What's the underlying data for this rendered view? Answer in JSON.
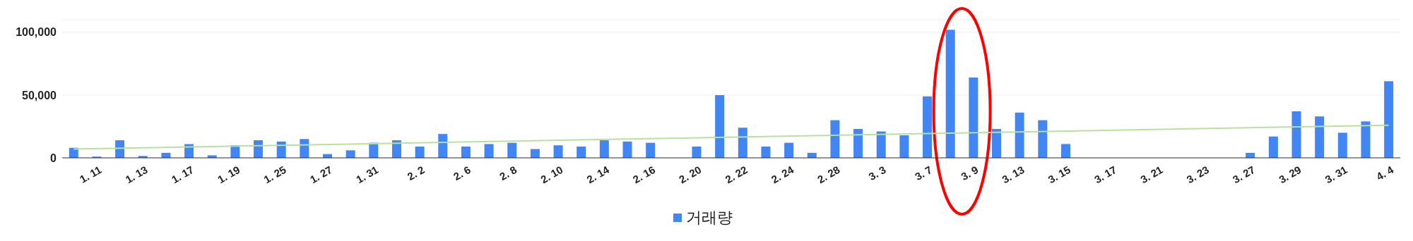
{
  "chart_data": {
    "type": "bar",
    "categories": [
      null,
      "1. 11",
      null,
      "1. 13",
      null,
      "1. 17",
      null,
      "1. 19",
      null,
      "1. 25",
      null,
      "1. 27",
      null,
      "1. 31",
      null,
      "2. 2",
      null,
      "2. 6",
      null,
      "2. 8",
      null,
      "2. 10",
      null,
      "2. 14",
      null,
      "2. 16",
      null,
      "2. 20",
      null,
      "2. 22",
      null,
      "2. 24",
      null,
      "2. 28",
      null,
      "3. 3",
      null,
      "3. 7",
      null,
      "3. 9",
      null,
      "3. 13",
      null,
      "3. 15",
      null,
      "3. 17",
      null,
      "3. 21",
      null,
      "3. 23",
      null,
      "3. 27",
      null,
      "3. 29",
      null,
      "3. 31",
      null,
      "4. 4"
    ],
    "series": [
      {
        "name": "거래량",
        "color": "#4285f4",
        "values": [
          8000,
          1000,
          14000,
          1500,
          4000,
          11000,
          2000,
          10000,
          14000,
          13000,
          15000,
          3000,
          6000,
          12000,
          14000,
          9000,
          19000,
          9000,
          11000,
          12000,
          7000,
          10000,
          9000,
          14000,
          13000,
          12000,
          0,
          9000,
          50000,
          24000,
          9000,
          12000,
          4000,
          30000,
          23000,
          21000,
          18000,
          49000,
          102000,
          64000,
          23000,
          36000,
          30000,
          11000,
          0,
          0,
          0,
          0,
          0,
          0,
          0,
          4000,
          17000,
          37000,
          33000,
          20000,
          29000,
          61000
        ]
      },
      {
        "type": "line",
        "color": "#b7e1a1",
        "values": [
          7000,
          null,
          null,
          null,
          null,
          null,
          null,
          null,
          null,
          null,
          null,
          null,
          null,
          null,
          null,
          null,
          null,
          null,
          null,
          null,
          null,
          null,
          null,
          null,
          null,
          null,
          null,
          null,
          null,
          null,
          null,
          null,
          null,
          null,
          null,
          null,
          null,
          null,
          null,
          null,
          null,
          null,
          null,
          null,
          null,
          null,
          null,
          null,
          null,
          null,
          null,
          null,
          null,
          null,
          null,
          null,
          null,
          26000
        ]
      }
    ],
    "ylim": [
      0,
      110000
    ],
    "yticks": [
      0,
      {
        "value": 50000,
        "label": "50,000"
      },
      {
        "value": 100000,
        "label": "100,000"
      }
    ],
    "grid": "y",
    "legend": "bottom"
  }
}
